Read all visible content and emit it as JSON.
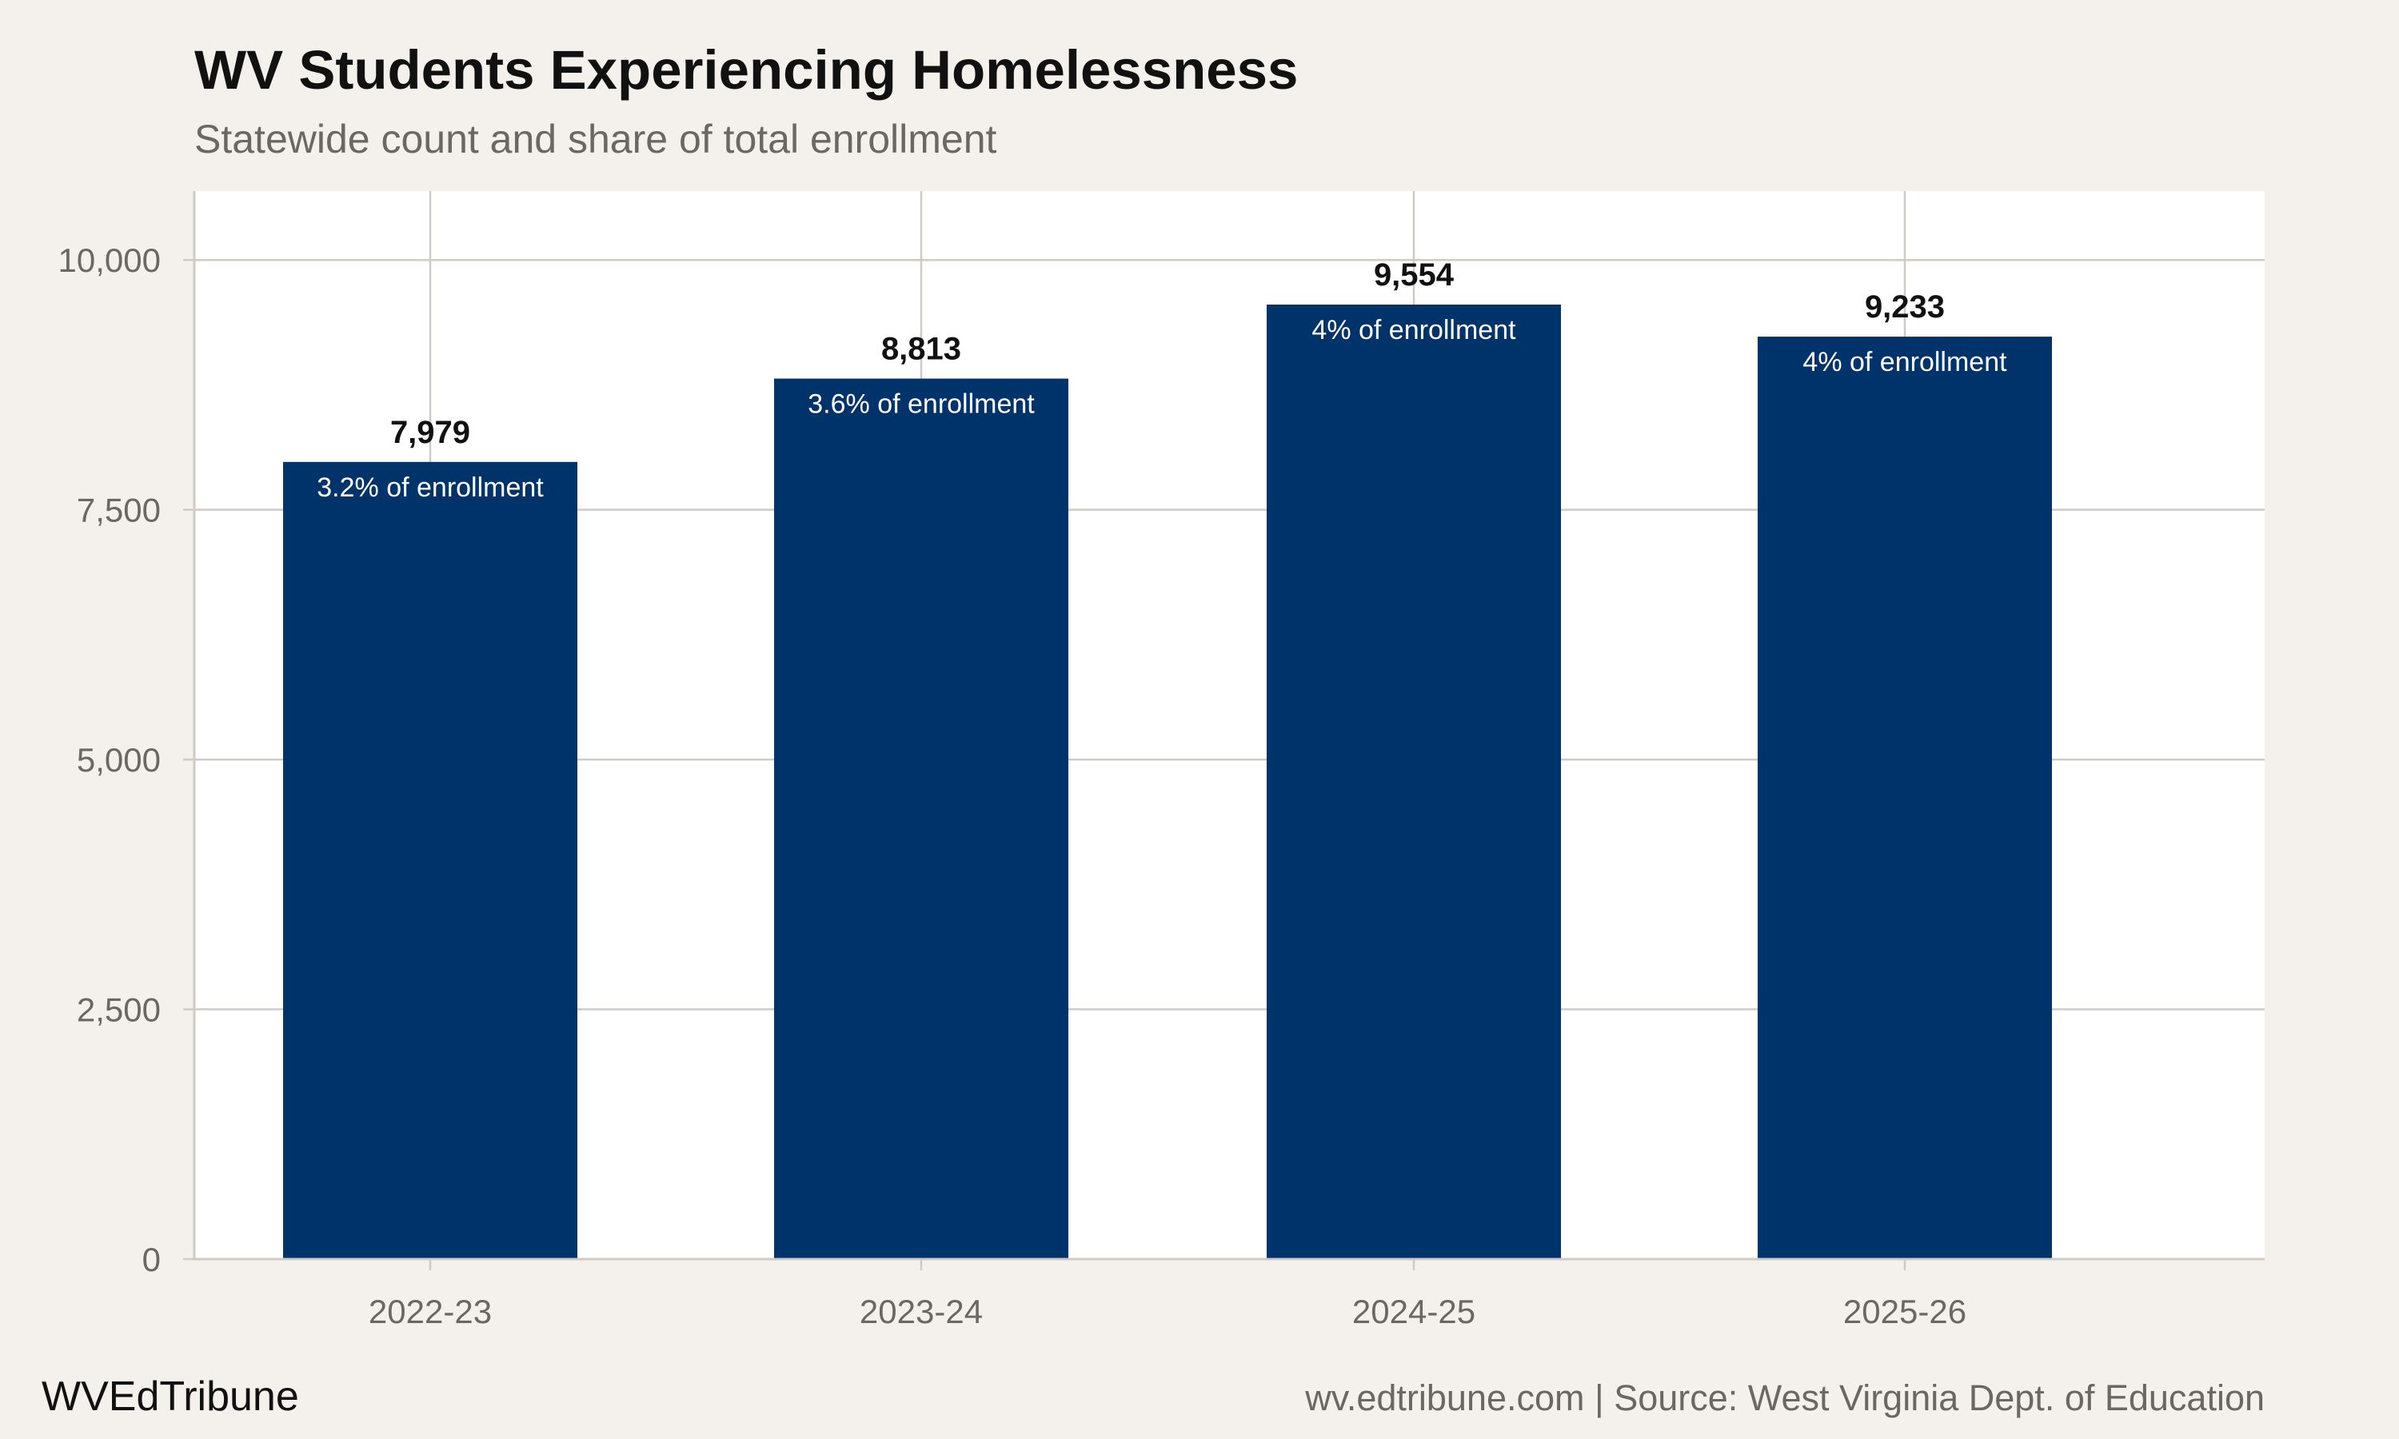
{
  "chart_data": {
    "type": "bar",
    "title": "WV Students Experiencing Homelessness",
    "subtitle": "Statewide count and share of total enrollment",
    "xlabel": "",
    "ylabel": "",
    "categories": [
      "2022-23",
      "2023-24",
      "2024-25",
      "2025-26"
    ],
    "values": [
      7979,
      8813,
      9554,
      9233
    ],
    "value_labels": [
      "7,979",
      "8,813",
      "9,554",
      "9,233"
    ],
    "share_labels": [
      "3.2% of enrollment",
      "3.6% of enrollment",
      "4% of enrollment",
      "4% of enrollment"
    ],
    "ylim": [
      0,
      10690
    ],
    "yticks": [
      0,
      2500,
      5000,
      7500,
      10000
    ],
    "ytick_labels": [
      "0",
      "2,500",
      "5,000",
      "7,500",
      "10,000"
    ],
    "grid": true,
    "legend": "none",
    "colors": {
      "bar": "#00336a",
      "background": "#f4f1ec",
      "panel": "#ffffff",
      "grid": "#cfcac2"
    }
  },
  "footer": {
    "brand": "WVEdTribune",
    "source": "wv.edtribune.com | Source: West Virginia Dept. of Education"
  }
}
